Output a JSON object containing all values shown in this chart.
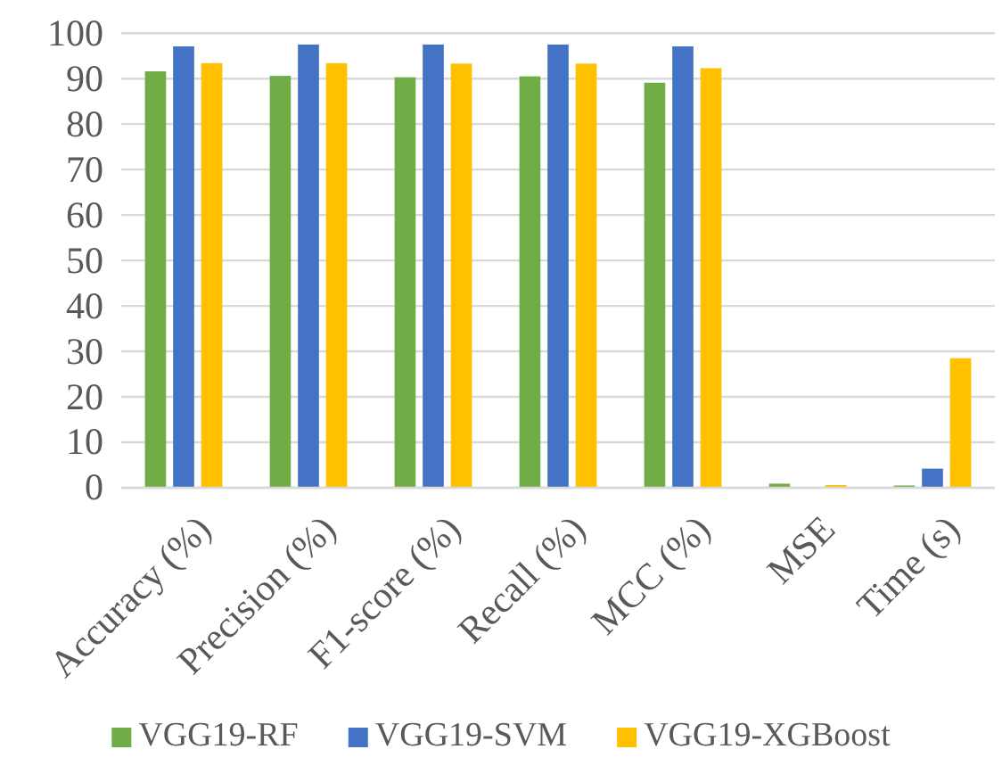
{
  "chart_data": {
    "type": "bar",
    "categories": [
      "Accuracy (%)",
      "Precision (%)",
      "F1-score (%)",
      "Recall (%)",
      "MCC (%)",
      "MSE",
      "Time (s)"
    ],
    "series": [
      {
        "name": "VGG19-RF",
        "color": "#70ad47",
        "values": [
          91.6,
          90.6,
          90.3,
          90.5,
          89.1,
          0.9,
          0.5
        ]
      },
      {
        "name": "VGG19-SVM",
        "color": "#4472c4",
        "values": [
          97.1,
          97.5,
          97.5,
          97.5,
          97.1,
          null,
          4.2
        ]
      },
      {
        "name": "VGG19-XGBoost",
        "color": "#ffc000",
        "values": [
          93.4,
          93.4,
          93.3,
          93.3,
          92.3,
          0.6,
          28.5
        ]
      }
    ],
    "ylim": [
      0,
      100
    ],
    "yticks": [
      0,
      10,
      20,
      30,
      40,
      50,
      60,
      70,
      80,
      90,
      100
    ],
    "grid": "y",
    "legend": "bottom"
  }
}
